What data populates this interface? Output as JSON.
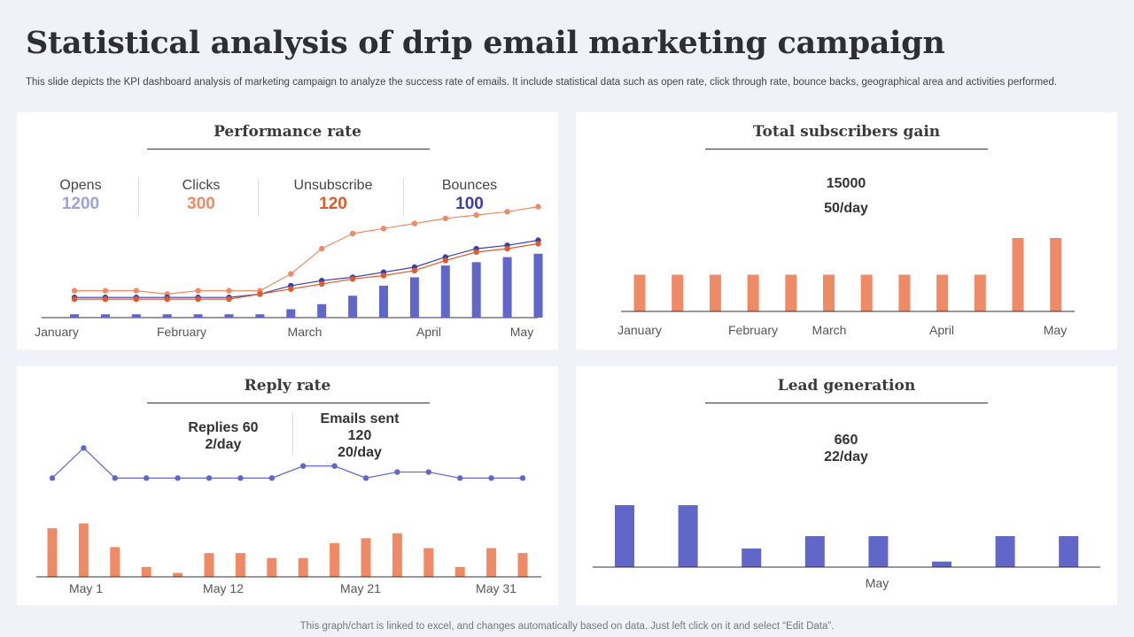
{
  "page": {
    "title": "Statistical analysis of drip email marketing campaign",
    "subtitle": "This slide depicts the KPI dashboard analysis of marketing campaign to analyze the success rate of emails. It include statistical data such as open rate, click through rate, bounce backs, geographical area and activities performed.",
    "footer": "This graph/chart is linked to excel,  and changes automatically based on data. Just left click on it and select “Edit Data”."
  },
  "colors": {
    "orange": "#ef8a66",
    "blue": "#6166c9",
    "navy": "#3b3fa6",
    "light_purple": "#9ea3d9",
    "red_orange": "#e05a2b",
    "opens_color": "#9ea3d9",
    "clicks_color": "#ef8a66",
    "unsubscribe_color": "#e05a2b",
    "bounces_color": "#3b3fa6"
  },
  "performance": {
    "title": "Performance rate",
    "kpis": [
      {
        "label": "Opens",
        "value": "1200"
      },
      {
        "label": "Clicks",
        "value": "300"
      },
      {
        "label": "Unsubscribe",
        "value": "120"
      },
      {
        "label": "Bounces",
        "value": "100"
      }
    ]
  },
  "subscribers": {
    "title": "Total subscribers gain",
    "total": "15000",
    "rate": "50/day"
  },
  "reply": {
    "title": "Reply rate",
    "replies_line1": "Replies 60",
    "replies_line2": "2/day",
    "sent_line1": "Emails sent",
    "sent_line2": "120",
    "sent_line3": "20/day"
  },
  "leads": {
    "title": "Lead generation",
    "total": "660",
    "rate": "22/day"
  },
  "chart_data": [
    {
      "type": "bar",
      "id": "performance",
      "title": "Performance rate",
      "x_tick_labels": [
        "January",
        "February",
        "March",
        "April",
        "May"
      ],
      "ylim": [
        0,
        100
      ],
      "series": [
        {
          "kind": "bar",
          "color": "#6166c9",
          "values": [
            2,
            2,
            2,
            2,
            2,
            2,
            2,
            5,
            8,
            13,
            19,
            24,
            31,
            33,
            36,
            38
          ]
        },
        {
          "kind": "line",
          "color": "#ef8a66",
          "values": [
            16,
            16,
            16,
            14,
            16,
            16,
            16,
            26,
            41,
            50,
            53,
            56,
            59,
            61,
            63,
            66
          ]
        },
        {
          "kind": "line",
          "color": "#3b3fa6",
          "values": [
            12,
            12,
            12,
            12,
            12,
            12,
            14,
            19,
            22,
            24,
            27,
            30,
            36,
            41,
            43,
            46
          ]
        },
        {
          "kind": "line",
          "color": "#e05a2b",
          "values": [
            11,
            11,
            11,
            11,
            11,
            11,
            14,
            17,
            20,
            23,
            25,
            28,
            34,
            39,
            41,
            44
          ]
        }
      ]
    },
    {
      "type": "bar",
      "id": "subscribers",
      "title": "Total subscribers gain",
      "x_tick_labels": [
        "January",
        "February",
        "March",
        "April",
        "May"
      ],
      "ylim": [
        0,
        100
      ],
      "values": [
        50,
        50,
        50,
        50,
        50,
        50,
        50,
        50,
        50,
        50,
        100,
        100
      ]
    },
    {
      "type": "bar",
      "id": "reply",
      "title": "Reply rate",
      "x_tick_labels": [
        "May 1",
        "May 12",
        "May 21",
        "May 31"
      ],
      "ylim": [
        0,
        100
      ],
      "series": [
        {
          "kind": "bar",
          "color": "#ef8a66",
          "values": [
            49,
            54,
            30,
            10,
            4,
            24,
            24,
            19,
            19,
            34,
            39,
            44,
            29,
            10,
            29,
            24
          ]
        },
        {
          "kind": "line",
          "color": "#6166c9",
          "values": [
            74,
            99,
            74,
            74,
            74,
            74,
            74,
            74,
            84,
            84,
            74,
            79,
            79,
            74,
            74,
            74
          ]
        }
      ]
    },
    {
      "type": "bar",
      "id": "leads",
      "title": "Lead generation",
      "x_tick_labels": [
        "May"
      ],
      "ylim": [
        0,
        100
      ],
      "values": [
        100,
        100,
        30,
        50,
        50,
        9,
        50,
        50
      ]
    }
  ]
}
